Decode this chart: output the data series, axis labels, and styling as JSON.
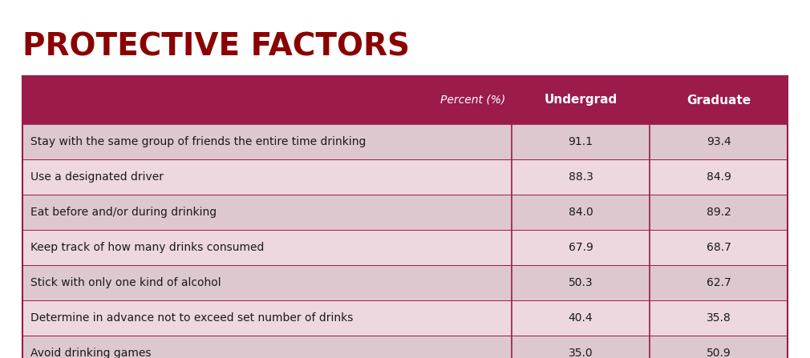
{
  "title": "PROTECTIVE FACTORS",
  "title_color": "#8B0000",
  "header_bg_color": "#9B1B4B",
  "header_text_color": "#FFFFFF",
  "header_italic_label": "Percent (%)",
  "header_cols": [
    "Undergrad",
    "Graduate"
  ],
  "row_data": [
    [
      "Stay with the same group of friends the entire time drinking",
      "91.1",
      "93.4"
    ],
    [
      "Use a designated driver",
      "88.3",
      "84.9"
    ],
    [
      "Eat before and/or during drinking",
      "84.0",
      "89.2"
    ],
    [
      "Keep track of how many drinks consumed",
      "67.9",
      "68.7"
    ],
    [
      "Stick with only one kind of alcohol",
      "50.3",
      "62.7"
    ],
    [
      "Determine in advance not to exceed set number of drinks",
      "40.4",
      "35.8"
    ],
    [
      "Avoid drinking games",
      "35.0",
      "50.9"
    ]
  ],
  "row_colors": [
    "#DEC8CF",
    "#ECD8DE",
    "#DEC8CF",
    "#ECD8DE",
    "#DEC8CF",
    "#ECD8DE",
    "#DEC8CF"
  ],
  "border_color": "#9B1B4B",
  "text_color": "#1a1a1a",
  "bg_color": "#FFFFFF",
  "fig_width": 10.1,
  "fig_height": 4.47,
  "dpi": 100
}
